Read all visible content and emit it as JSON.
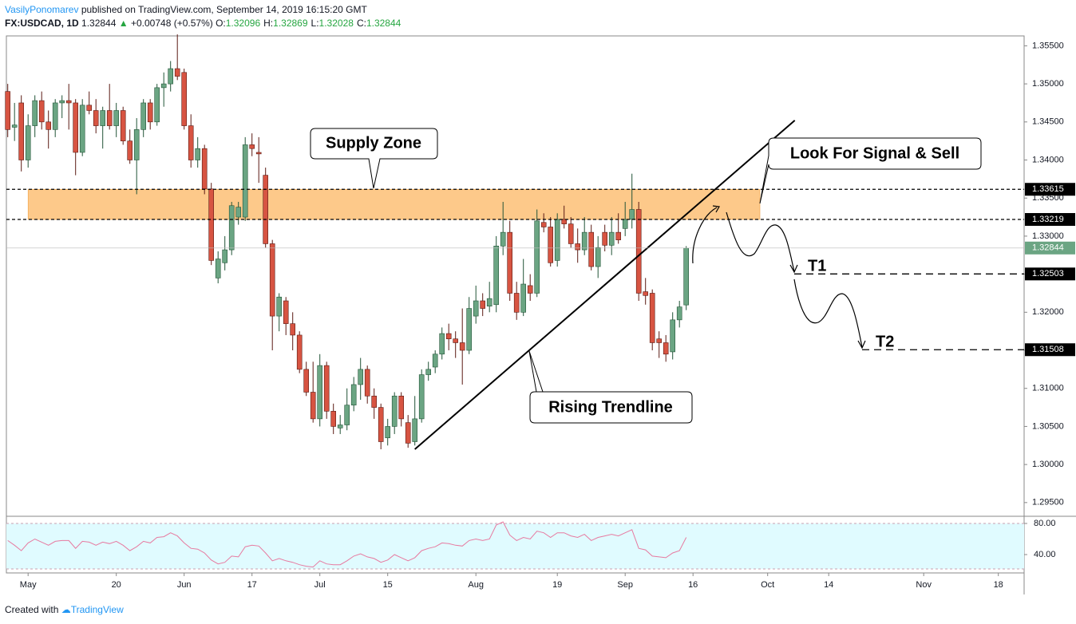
{
  "header": {
    "author": "VasilyPonomarev",
    "published": "published on TradingView.com, September 14, 2019 16:15:20 GMT",
    "symbol": "FX:USDCAD, 1D",
    "last": "1.32844",
    "change": "+0.00748 (+0.57%)",
    "ohlc": [
      {
        "key": "O:",
        "value": "1.32096"
      },
      {
        "key": "H:",
        "value": "1.32869"
      },
      {
        "key": "L:",
        "value": "1.32028"
      },
      {
        "key": "C:",
        "value": "1.32844"
      }
    ]
  },
  "chart_data": [
    {
      "type": "candlestick",
      "xlim": [
        -0.2,
        149.8
      ],
      "ylim": [
        1.2932,
        1.3563
      ],
      "xticks": [
        {
          "value": 3,
          "label": "May"
        },
        {
          "value": 16,
          "label": "20"
        },
        {
          "value": 26,
          "label": "Jun"
        },
        {
          "value": 36,
          "label": "17"
        },
        {
          "value": 46,
          "label": "Jul"
        },
        {
          "value": 56,
          "label": "15"
        },
        {
          "value": 69,
          "label": "Aug"
        },
        {
          "value": 81,
          "label": "19"
        },
        {
          "value": 91,
          "label": "Sep"
        },
        {
          "value": 101,
          "label": "16"
        },
        {
          "value": 112,
          "label": "Oct"
        },
        {
          "value": 121,
          "label": "14"
        },
        {
          "value": 135,
          "label": "Nov"
        },
        {
          "value": 146,
          "label": "18"
        }
      ],
      "yticks": [
        {
          "value": 1.295,
          "label": "1.29500"
        },
        {
          "value": 1.3,
          "label": "1.30000"
        },
        {
          "value": 1.305,
          "label": "1.30500"
        },
        {
          "value": 1.31,
          "label": "1.31000"
        },
        {
          "value": 1.315,
          "label": "1.31500"
        },
        {
          "value": 1.32,
          "label": "1.32000"
        },
        {
          "value": 1.325,
          "label": "1.32500"
        },
        {
          "value": 1.33,
          "label": "1.33000"
        },
        {
          "value": 1.335,
          "label": "1.33500"
        },
        {
          "value": 1.34,
          "label": "1.34000"
        },
        {
          "value": 1.345,
          "label": "1.34500"
        },
        {
          "value": 1.35,
          "label": "1.35000"
        },
        {
          "value": 1.355,
          "label": "1.35500"
        }
      ],
      "grid": false,
      "up_color": "#6ba583",
      "down_color": "#d75442",
      "up_border": "#225437",
      "down_border": "#5b1a13",
      "open": [
        1.349,
        1.3443,
        1.3475,
        1.34,
        1.3445,
        1.3478,
        1.345,
        1.344,
        1.3475,
        1.3478,
        1.3475,
        1.341,
        1.3472,
        1.3465,
        1.3445,
        1.3465,
        1.3445,
        1.3465,
        1.3425,
        1.34,
        1.344,
        1.3475,
        1.345,
        1.3495,
        1.35,
        1.352,
        1.3515,
        1.3445,
        1.34,
        1.3415,
        1.3362,
        1.3245,
        1.3265,
        1.3282,
        1.3325,
        1.3325,
        1.342,
        1.341,
        1.338,
        1.329,
        1.3195,
        1.3215,
        1.3185,
        1.317,
        1.3125,
        1.3095,
        1.306,
        1.313,
        1.307,
        1.3048,
        1.3052,
        1.3078,
        1.3105,
        1.3125,
        1.309,
        1.3075,
        1.3035,
        1.305,
        1.309,
        1.3055,
        1.303,
        1.306,
        1.3118,
        1.3128,
        1.3145,
        1.3172,
        1.3165,
        1.316,
        1.315,
        1.3195,
        1.3215,
        1.3208,
        1.321,
        1.3287,
        1.3305,
        1.3225,
        1.32,
        1.3235,
        1.3225,
        1.3318,
        1.3312,
        1.3268,
        1.3322,
        1.3316,
        1.329,
        1.3282,
        1.3305,
        1.326,
        1.3305,
        1.3288,
        1.3305,
        1.331,
        1.3322,
        1.3335,
        1.3227,
        1.3225,
        1.3165,
        1.316,
        1.3148,
        1.319,
        1.32096
      ],
      "high": [
        1.35,
        1.3475,
        1.3485,
        1.346,
        1.3485,
        1.349,
        1.3465,
        1.348,
        1.3485,
        1.35,
        1.348,
        1.348,
        1.349,
        1.348,
        1.347,
        1.35,
        1.3475,
        1.347,
        1.344,
        1.3455,
        1.348,
        1.348,
        1.35,
        1.3515,
        1.353,
        1.3565,
        1.352,
        1.346,
        1.343,
        1.342,
        1.337,
        1.328,
        1.33,
        1.3345,
        1.3345,
        1.343,
        1.3435,
        1.343,
        1.339,
        1.3295,
        1.3225,
        1.322,
        1.32,
        1.3175,
        1.3135,
        1.3135,
        1.3145,
        1.3135,
        1.308,
        1.3065,
        1.31,
        1.3115,
        1.314,
        1.313,
        1.31,
        1.308,
        1.306,
        1.3095,
        1.3095,
        1.3065,
        1.309,
        1.3125,
        1.3135,
        1.315,
        1.318,
        1.3185,
        1.3175,
        1.3205,
        1.322,
        1.3235,
        1.3225,
        1.324,
        1.33,
        1.3345,
        1.332,
        1.324,
        1.327,
        1.325,
        1.3335,
        1.333,
        1.3325,
        1.333,
        1.334,
        1.3325,
        1.331,
        1.3325,
        1.3315,
        1.33,
        1.3315,
        1.3325,
        1.333,
        1.3345,
        1.3382,
        1.3345,
        1.3245,
        1.323,
        1.3175,
        1.317,
        1.32,
        1.3215,
        1.32869
      ],
      "low": [
        1.343,
        1.3425,
        1.3385,
        1.339,
        1.343,
        1.344,
        1.3415,
        1.343,
        1.3455,
        1.344,
        1.338,
        1.3405,
        1.346,
        1.3435,
        1.3415,
        1.344,
        1.343,
        1.342,
        1.3395,
        1.3355,
        1.343,
        1.344,
        1.3445,
        1.347,
        1.349,
        1.3505,
        1.344,
        1.339,
        1.339,
        1.3355,
        1.3262,
        1.3238,
        1.3255,
        1.3275,
        1.3315,
        1.332,
        1.3405,
        1.337,
        1.3285,
        1.315,
        1.3175,
        1.317,
        1.315,
        1.312,
        1.309,
        1.3055,
        1.305,
        1.306,
        1.304,
        1.304,
        1.3045,
        1.307,
        1.3085,
        1.308,
        1.306,
        1.302,
        1.3025,
        1.304,
        1.305,
        1.3022,
        1.3025,
        1.3055,
        1.311,
        1.312,
        1.3138,
        1.315,
        1.314,
        1.3105,
        1.3145,
        1.3185,
        1.3195,
        1.32,
        1.32,
        1.3275,
        1.3215,
        1.319,
        1.3195,
        1.3215,
        1.322,
        1.3305,
        1.326,
        1.326,
        1.331,
        1.3285,
        1.3265,
        1.3275,
        1.3255,
        1.3245,
        1.328,
        1.3275,
        1.329,
        1.33,
        1.331,
        1.3215,
        1.321,
        1.315,
        1.314,
        1.3135,
        1.3138,
        1.318,
        1.32028
      ],
      "close": [
        1.344,
        1.3446,
        1.34,
        1.3445,
        1.3478,
        1.345,
        1.344,
        1.3475,
        1.3478,
        1.3475,
        1.341,
        1.3472,
        1.3465,
        1.3445,
        1.3465,
        1.3445,
        1.3465,
        1.3425,
        1.34,
        1.344,
        1.3475,
        1.345,
        1.3495,
        1.35,
        1.352,
        1.351,
        1.3445,
        1.34,
        1.3415,
        1.3362,
        1.3268,
        1.327,
        1.3282,
        1.334,
        1.3338,
        1.342,
        1.3415,
        1.3408,
        1.329,
        1.3195,
        1.322,
        1.3185,
        1.317,
        1.3125,
        1.3095,
        1.306,
        1.313,
        1.307,
        1.305,
        1.3052,
        1.3078,
        1.3105,
        1.3125,
        1.309,
        1.3075,
        1.303,
        1.305,
        1.309,
        1.306,
        1.3028,
        1.306,
        1.3118,
        1.3125,
        1.3145,
        1.3172,
        1.3165,
        1.316,
        1.315,
        1.3205,
        1.3215,
        1.3205,
        1.3218,
        1.3287,
        1.3305,
        1.3225,
        1.32,
        1.3237,
        1.3225,
        1.332,
        1.3312,
        1.3265,
        1.3322,
        1.3316,
        1.329,
        1.3282,
        1.3305,
        1.326,
        1.3285,
        1.3288,
        1.3305,
        1.3295,
        1.3322,
        1.3335,
        1.3225,
        1.3222,
        1.316,
        1.316,
        1.3145,
        1.319,
        1.3207,
        1.32844
      ],
      "zone": [
        1.33219,
        1.33615
      ],
      "zone_color": "#fdc98a",
      "levels": [
        1.33615,
        1.33219
      ],
      "last_price": 1.32844,
      "last_color": "#6ba583",
      "targets": [
        {
          "text": "T1",
          "value": 1.32503
        },
        {
          "text": "T2",
          "value": 1.31508
        }
      ],
      "trendline": {
        "x": [
          60,
          116
        ],
        "y": [
          1.302,
          1.3452
        ]
      },
      "annotations": [
        "Supply Zone",
        "Look For Signal & Sell",
        "Rising Trendline"
      ]
    },
    {
      "type": "line",
      "xlim": [
        -0.2,
        149.8
      ],
      "ylim": [
        16.4,
        88.2
      ],
      "yticks": [
        {
          "value": 80,
          "label": "80.00"
        },
        {
          "value": 40,
          "label": "40.00"
        }
      ],
      "color": "#e77aa0",
      "values": [
        58,
        52,
        45,
        55,
        60,
        56,
        52,
        57,
        58,
        58,
        48,
        57,
        56,
        52,
        56,
        54,
        57,
        52,
        45,
        50,
        57,
        55,
        62,
        63,
        68,
        64,
        55,
        48,
        47,
        42,
        33,
        28,
        30,
        38,
        37,
        50,
        52,
        51,
        42,
        32,
        35,
        32,
        30,
        27,
        25,
        24,
        32,
        28,
        27,
        27,
        32,
        38,
        41,
        37,
        35,
        30,
        33,
        40,
        36,
        32,
        36,
        45,
        48,
        50,
        55,
        54,
        52,
        51,
        58,
        60,
        58,
        60,
        78,
        82,
        65,
        58,
        62,
        60,
        70,
        68,
        62,
        68,
        68,
        64,
        62,
        66,
        58,
        62,
        64,
        66,
        64,
        68,
        72,
        48,
        46,
        38,
        37,
        36,
        42,
        45,
        62
      ]
    }
  ],
  "footer": {
    "text": "Created with",
    "brand": "TradingView"
  }
}
